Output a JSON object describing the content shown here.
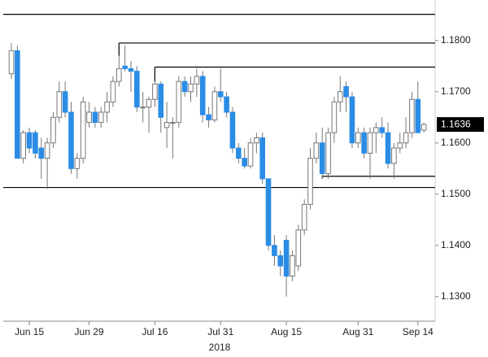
{
  "chart_data": {
    "type": "candlestick",
    "x_label": "2018",
    "last_price": 1.1636,
    "up_color": "#ffffff",
    "down_color": "#2b8ce6",
    "ylim": [
      1.1252,
      1.1879
    ],
    "yticks": [
      {
        "value": 1.13,
        "label": "1.1300"
      },
      {
        "value": 1.14,
        "label": "1.1400"
      },
      {
        "value": 1.15,
        "label": "1.1500"
      },
      {
        "value": 1.16,
        "label": "1.1600"
      },
      {
        "value": 1.17,
        "label": "1.1700"
      },
      {
        "value": 1.18,
        "label": "1.1800"
      }
    ],
    "levels": [
      {
        "value": 1.1851,
        "start": 0
      },
      {
        "value": 1.1795,
        "start": 18
      },
      {
        "value": 1.1748,
        "start": 24
      },
      {
        "value": 1.1535,
        "start": 52
      },
      {
        "value": 1.1513,
        "start": 0
      }
    ],
    "categories": [
      null,
      null,
      null,
      "Jun 15",
      null,
      null,
      null,
      null,
      null,
      null,
      null,
      null,
      null,
      "Jun 29",
      null,
      null,
      null,
      null,
      null,
      null,
      null,
      null,
      null,
      null,
      "Jul 16",
      null,
      null,
      null,
      null,
      null,
      null,
      null,
      null,
      null,
      null,
      "Jul 31",
      null,
      null,
      null,
      null,
      null,
      null,
      null,
      null,
      null,
      null,
      "Aug 15",
      null,
      null,
      null,
      null,
      null,
      null,
      null,
      null,
      null,
      null,
      null,
      "Aug 31",
      null,
      null,
      null,
      null,
      null,
      null,
      null,
      null,
      null,
      "Sep 14",
      null
    ],
    "open": [
      1.1735,
      1.178,
      1.157,
      1.162,
      1.162,
      1.159,
      1.157,
      1.16,
      1.165,
      1.17,
      1.166,
      1.155,
      1.157,
      1.164,
      1.166,
      1.164,
      1.166,
      1.168,
      1.172,
      1.175,
      1.1745,
      1.174,
      1.167,
      1.167,
      1.1685,
      1.1715,
      1.163,
      1.164,
      1.164,
      1.172,
      1.17,
      1.1715,
      1.173,
      1.1655,
      1.1645,
      1.17,
      1.169,
      1.166,
      1.159,
      1.157,
      1.1555,
      1.16,
      1.161,
      1.153,
      1.14,
      1.138,
      1.141,
      1.134,
      1.136,
      1.143,
      1.148,
      1.157,
      1.16,
      1.154,
      1.162,
      1.168,
      1.171,
      1.169,
      1.16,
      1.162,
      1.158,
      1.162,
      1.163,
      1.162,
      1.156,
      1.159,
      1.16,
      1.162,
      1.1685,
      1.1625
    ],
    "high": [
      1.1795,
      1.179,
      1.1625,
      1.163,
      1.1625,
      1.161,
      1.161,
      1.166,
      1.172,
      1.172,
      1.168,
      1.158,
      1.169,
      1.168,
      1.167,
      1.167,
      1.17,
      1.173,
      1.177,
      1.179,
      1.176,
      1.175,
      1.17,
      1.169,
      1.172,
      1.172,
      1.168,
      1.165,
      1.173,
      1.173,
      1.173,
      1.1745,
      1.174,
      1.167,
      1.171,
      1.1745,
      1.17,
      1.167,
      1.16,
      1.159,
      1.161,
      1.162,
      1.162,
      1.153,
      1.142,
      1.139,
      1.142,
      1.139,
      1.144,
      1.149,
      1.159,
      1.162,
      1.163,
      1.163,
      1.169,
      1.173,
      1.172,
      1.17,
      1.163,
      1.163,
      1.163,
      1.164,
      1.165,
      1.164,
      1.16,
      1.162,
      1.165,
      1.17,
      1.172,
      1.164
    ],
    "low": [
      1.1725,
      1.157,
      1.156,
      1.158,
      1.157,
      1.153,
      1.151,
      1.159,
      1.164,
      1.165,
      1.154,
      1.153,
      1.156,
      1.163,
      1.163,
      1.163,
      1.164,
      1.167,
      1.171,
      1.174,
      1.17,
      1.166,
      1.164,
      1.162,
      1.167,
      1.162,
      1.159,
      1.157,
      1.163,
      1.169,
      1.168,
      1.169,
      1.164,
      1.163,
      1.164,
      1.168,
      1.165,
      1.158,
      1.156,
      1.155,
      1.155,
      1.158,
      1.152,
      1.139,
      1.136,
      1.134,
      1.13,
      1.133,
      1.135,
      1.142,
      1.147,
      1.156,
      1.153,
      1.153,
      1.16,
      1.166,
      1.166,
      1.159,
      1.159,
      1.157,
      1.153,
      1.158,
      1.161,
      1.155,
      1.153,
      1.158,
      1.159,
      1.161,
      1.162,
      1.162
    ],
    "close": [
      1.178,
      1.157,
      1.162,
      1.159,
      1.158,
      1.157,
      1.16,
      1.165,
      1.17,
      1.166,
      1.155,
      1.157,
      1.168,
      1.166,
      1.164,
      1.166,
      1.168,
      1.172,
      1.1745,
      1.1745,
      1.174,
      1.167,
      1.167,
      1.1685,
      1.1715,
      1.165,
      1.164,
      1.164,
      1.172,
      1.17,
      1.1715,
      1.173,
      1.1655,
      1.1645,
      1.17,
      1.169,
      1.166,
      1.159,
      1.157,
      1.1555,
      1.16,
      1.161,
      1.153,
      1.14,
      1.138,
      1.136,
      1.134,
      1.138,
      1.143,
      1.148,
      1.157,
      1.16,
      1.154,
      1.162,
      1.168,
      1.17,
      1.169,
      1.16,
      1.162,
      1.158,
      1.162,
      1.163,
      1.162,
      1.156,
      1.159,
      1.16,
      1.162,
      1.1685,
      1.162,
      1.1636
    ]
  }
}
